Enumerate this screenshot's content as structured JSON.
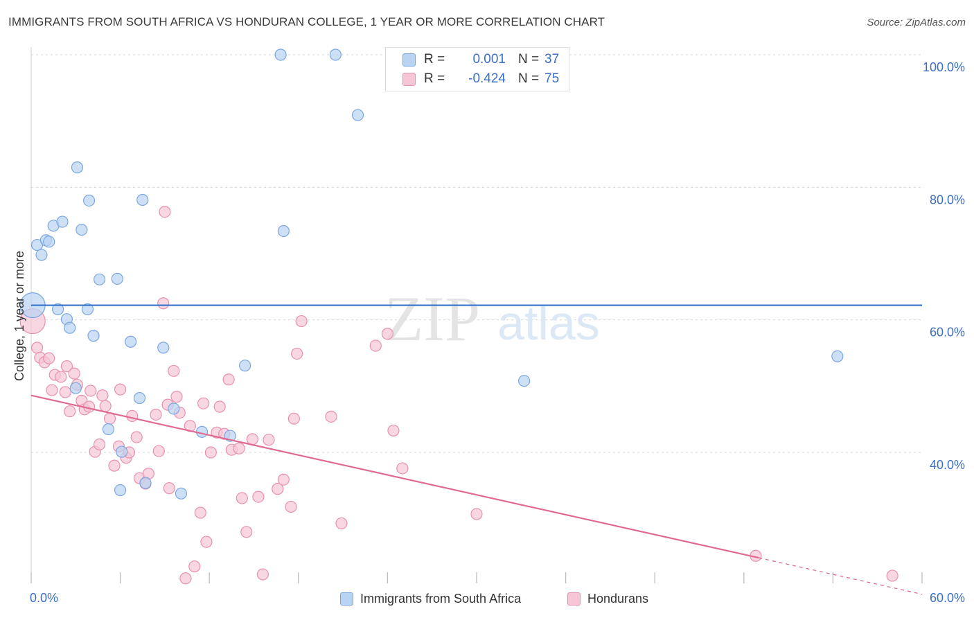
{
  "title": "IMMIGRANTS FROM SOUTH AFRICA VS HONDURAN COLLEGE, 1 YEAR OR MORE CORRELATION CHART",
  "source": "Source: ZipAtlas.com",
  "watermark": {
    "zip": "ZIP",
    "atlas": "atlas"
  },
  "legend": {
    "r_label": "R =",
    "n_label": "N =",
    "series": [
      {
        "name": "Immigrants from South Africa",
        "r": "0.001",
        "n": "37"
      },
      {
        "name": "Hondurans",
        "r": "-0.424",
        "n": "75"
      }
    ]
  },
  "colors": {
    "blue_fill": "#b9d3f2",
    "blue_stroke": "#7aa6e0",
    "blue_line": "#3b78d0",
    "pink_fill": "#f7c6d6",
    "pink_stroke": "#e891ae",
    "pink_line": "#e06a93",
    "axis_text": "#3a6fc4"
  },
  "chart_data": {
    "type": "scatter",
    "title": "IMMIGRANTS FROM SOUTH AFRICA VS HONDURAN COLLEGE, 1 YEAR OR MORE CORRELATION CHART",
    "xlabel": "",
    "ylabel": "College, 1 year or more",
    "xlim": [
      0,
      60
    ],
    "ylim": [
      18.5,
      102
    ],
    "x_tick_labels": [
      "0.0%",
      "60.0%"
    ],
    "y_ticks": [
      40,
      60,
      80,
      100
    ],
    "y_tick_labels": [
      "40.0%",
      "60.0%",
      "80.0%",
      "100.0%"
    ],
    "grid": true,
    "series": [
      {
        "name": "Immigrants from South Africa",
        "color": "blue",
        "trend": {
          "x": [
            0,
            60
          ],
          "y": [
            62.2,
            62.2
          ]
        },
        "points": [
          [
            0.1,
            62.2,
            "large"
          ],
          [
            0.4,
            71.3
          ],
          [
            0.7,
            69.8
          ],
          [
            1.0,
            72.0
          ],
          [
            1.2,
            71.8
          ],
          [
            1.5,
            74.2
          ],
          [
            2.1,
            74.8
          ],
          [
            3.1,
            83.0
          ],
          [
            3.4,
            73.6
          ],
          [
            3.9,
            78.0
          ],
          [
            1.8,
            61.6
          ],
          [
            2.4,
            60.1
          ],
          [
            2.6,
            58.8
          ],
          [
            3.8,
            61.6
          ],
          [
            4.2,
            57.6
          ],
          [
            4.6,
            66.1
          ],
          [
            5.8,
            66.2
          ],
          [
            6.7,
            56.7
          ],
          [
            7.5,
            78.1
          ],
          [
            8.9,
            55.8
          ],
          [
            3.0,
            49.7
          ],
          [
            5.2,
            43.5
          ],
          [
            7.3,
            48.2
          ],
          [
            9.6,
            46.6
          ],
          [
            10.1,
            33.8
          ],
          [
            6.1,
            40.1
          ],
          [
            7.7,
            35.4
          ],
          [
            6.0,
            34.3
          ],
          [
            11.5,
            43.1
          ],
          [
            13.4,
            42.5
          ],
          [
            14.4,
            53.1
          ],
          [
            17.0,
            73.4
          ],
          [
            16.8,
            100.0
          ],
          [
            20.5,
            100.0
          ],
          [
            22.0,
            90.9
          ],
          [
            33.2,
            50.8
          ],
          [
            54.3,
            54.5
          ]
        ]
      },
      {
        "name": "Hondurans",
        "color": "pink",
        "trend": {
          "x": [
            0,
            49.0
          ],
          "y": [
            48.6,
            24.1
          ]
        },
        "trend_dashed": {
          "x": [
            49.0,
            60
          ],
          "y": [
            24.1,
            18.6
          ]
        },
        "points": [
          [
            0.1,
            59.8,
            "large"
          ],
          [
            0.4,
            55.8
          ],
          [
            0.6,
            54.3
          ],
          [
            0.9,
            53.6
          ],
          [
            1.2,
            54.2
          ],
          [
            1.4,
            49.4
          ],
          [
            1.6,
            51.7
          ],
          [
            2.0,
            51.4
          ],
          [
            2.3,
            49.1
          ],
          [
            2.4,
            53.0
          ],
          [
            2.6,
            46.2
          ],
          [
            2.9,
            51.9
          ],
          [
            3.1,
            50.2
          ],
          [
            3.4,
            47.8
          ],
          [
            3.6,
            46.5
          ],
          [
            3.9,
            46.9
          ],
          [
            4.0,
            49.3
          ],
          [
            4.3,
            40.1
          ],
          [
            4.6,
            41.2
          ],
          [
            4.8,
            48.6
          ],
          [
            5.0,
            47.0
          ],
          [
            5.3,
            45.1
          ],
          [
            5.6,
            38.0
          ],
          [
            5.9,
            40.9
          ],
          [
            6.0,
            49.5
          ],
          [
            6.4,
            39.2
          ],
          [
            6.6,
            40.0
          ],
          [
            6.8,
            45.5
          ],
          [
            7.1,
            42.3
          ],
          [
            7.3,
            36.1
          ],
          [
            7.7,
            35.3
          ],
          [
            7.9,
            36.8
          ],
          [
            8.4,
            45.7
          ],
          [
            8.6,
            40.2
          ],
          [
            8.9,
            62.5
          ],
          [
            9.0,
            76.3
          ],
          [
            9.2,
            47.2
          ],
          [
            9.3,
            34.6
          ],
          [
            9.6,
            52.3
          ],
          [
            9.8,
            48.4
          ],
          [
            10.0,
            46.0
          ],
          [
            10.4,
            21.0
          ],
          [
            10.7,
            44.0
          ],
          [
            11.0,
            22.8
          ],
          [
            11.4,
            30.9
          ],
          [
            11.6,
            47.4
          ],
          [
            11.8,
            26.5
          ],
          [
            12.1,
            40.0
          ],
          [
            12.5,
            43.0
          ],
          [
            12.7,
            46.9
          ],
          [
            13.0,
            42.8
          ],
          [
            13.3,
            51.0
          ],
          [
            13.5,
            40.4
          ],
          [
            14.0,
            40.6
          ],
          [
            14.2,
            33.1
          ],
          [
            14.5,
            28.0
          ],
          [
            14.9,
            42.0
          ],
          [
            15.3,
            33.3
          ],
          [
            15.6,
            21.6
          ],
          [
            16.0,
            41.9
          ],
          [
            16.6,
            34.5
          ],
          [
            17.0,
            35.9
          ],
          [
            17.5,
            31.8
          ],
          [
            17.7,
            45.1
          ],
          [
            17.9,
            54.9
          ],
          [
            18.2,
            59.8
          ],
          [
            20.2,
            45.4
          ],
          [
            20.9,
            29.3
          ],
          [
            23.2,
            56.1
          ],
          [
            24.0,
            57.9
          ],
          [
            24.4,
            43.3
          ],
          [
            25.0,
            37.6
          ],
          [
            30.0,
            30.7
          ],
          [
            48.8,
            24.4
          ],
          [
            58.0,
            21.4
          ]
        ]
      }
    ]
  }
}
